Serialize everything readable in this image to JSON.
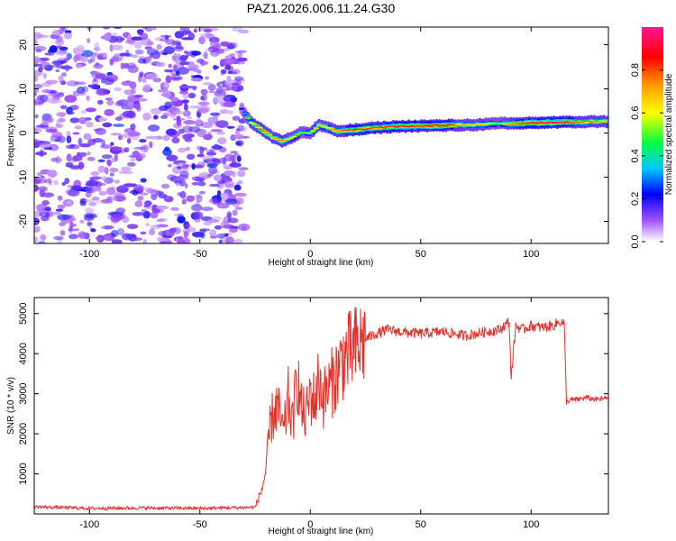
{
  "chart_data": [
    {
      "type": "heatmap",
      "title": "PAZ1.2026.006.11.24.G30",
      "xlabel": "Height of straight line (km)",
      "ylabel": "Frequency (Hz)",
      "xlim": [
        -125,
        135
      ],
      "ylim": [
        -25,
        24
      ],
      "x_ticks": [
        -100,
        -50,
        0,
        50,
        100
      ],
      "y_ticks": [
        -20,
        -10,
        0,
        10,
        20
      ],
      "colorbar": {
        "label": "Normalized spectral amplitude",
        "range": [
          0,
          1
        ],
        "ticks": [
          0.0,
          0.2,
          0.4,
          0.6,
          0.8
        ],
        "colors": [
          "#ffffff",
          "#a050ff",
          "#0000ff",
          "#00c8ff",
          "#00ff40",
          "#ffff00",
          "#ff9900",
          "#ff0000",
          "#ff1493"
        ]
      },
      "noise_region": {
        "x_from": -125,
        "x_to": -30,
        "amplitude": [
          0.05,
          0.25
        ]
      },
      "signal_track": {
        "x": [
          -31,
          -27,
          -22,
          -17,
          -13,
          -8,
          -4,
          0,
          4,
          8,
          12,
          20,
          30,
          40,
          50,
          60,
          70,
          80,
          86,
          90,
          100,
          110,
          120,
          130,
          135
        ],
        "frequency": [
          5.5,
          2.5,
          0.8,
          -1.0,
          -1.8,
          -1.0,
          0.2,
          0.0,
          1.8,
          1.2,
          0.4,
          0.7,
          1.2,
          1.5,
          1.6,
          1.7,
          1.8,
          2.0,
          2.2,
          2.1,
          2.3,
          2.4,
          2.5,
          2.6,
          2.6
        ],
        "amplitude": [
          0.25,
          0.6,
          0.8,
          0.7,
          0.8,
          0.6,
          0.5,
          0.55,
          0.7,
          0.6,
          0.75,
          0.85,
          0.8,
          0.9,
          0.85,
          0.9,
          0.7,
          0.65,
          0.5,
          0.75,
          0.9,
          0.95,
          0.8,
          0.75,
          0.7
        ]
      }
    },
    {
      "type": "line",
      "xlabel": "Height of straight line (km)",
      "ylabel": "SNR (10 * v/v)",
      "xlim": [
        -125,
        135
      ],
      "ylim": [
        0,
        5400
      ],
      "x_ticks": [
        -100,
        -50,
        0,
        50,
        100
      ],
      "y_ticks": [
        1000,
        2000,
        3000,
        4000,
        5000
      ],
      "series": [
        {
          "name": "SNR",
          "color": "#e8302a",
          "x": [
            -125,
            -100,
            -75,
            -50,
            -30,
            -25,
            -22,
            -20,
            -18,
            -15,
            -12,
            -10,
            -8,
            -6,
            -4,
            -2,
            0,
            2,
            4,
            6,
            8,
            10,
            12,
            15,
            18,
            22,
            26,
            30,
            35,
            40,
            50,
            60,
            70,
            80,
            86,
            88,
            90,
            91,
            93,
            96,
            100,
            105,
            110,
            113,
            115,
            116,
            118,
            120,
            125,
            130,
            135
          ],
          "y": [
            180,
            140,
            150,
            140,
            160,
            170,
            600,
            1100,
            2300,
            2700,
            2000,
            2900,
            2200,
            3500,
            2600,
            2400,
            3000,
            2800,
            3400,
            2900,
            3100,
            3300,
            3500,
            3900,
            4000,
            4200,
            4400,
            4500,
            4600,
            4550,
            4500,
            4550,
            4450,
            4550,
            4600,
            4700,
            4800,
            3400,
            4700,
            4600,
            4700,
            4650,
            4700,
            4800,
            4750,
            2800,
            2850,
            2850,
            2900,
            2850,
            2900
          ]
        }
      ]
    }
  ]
}
